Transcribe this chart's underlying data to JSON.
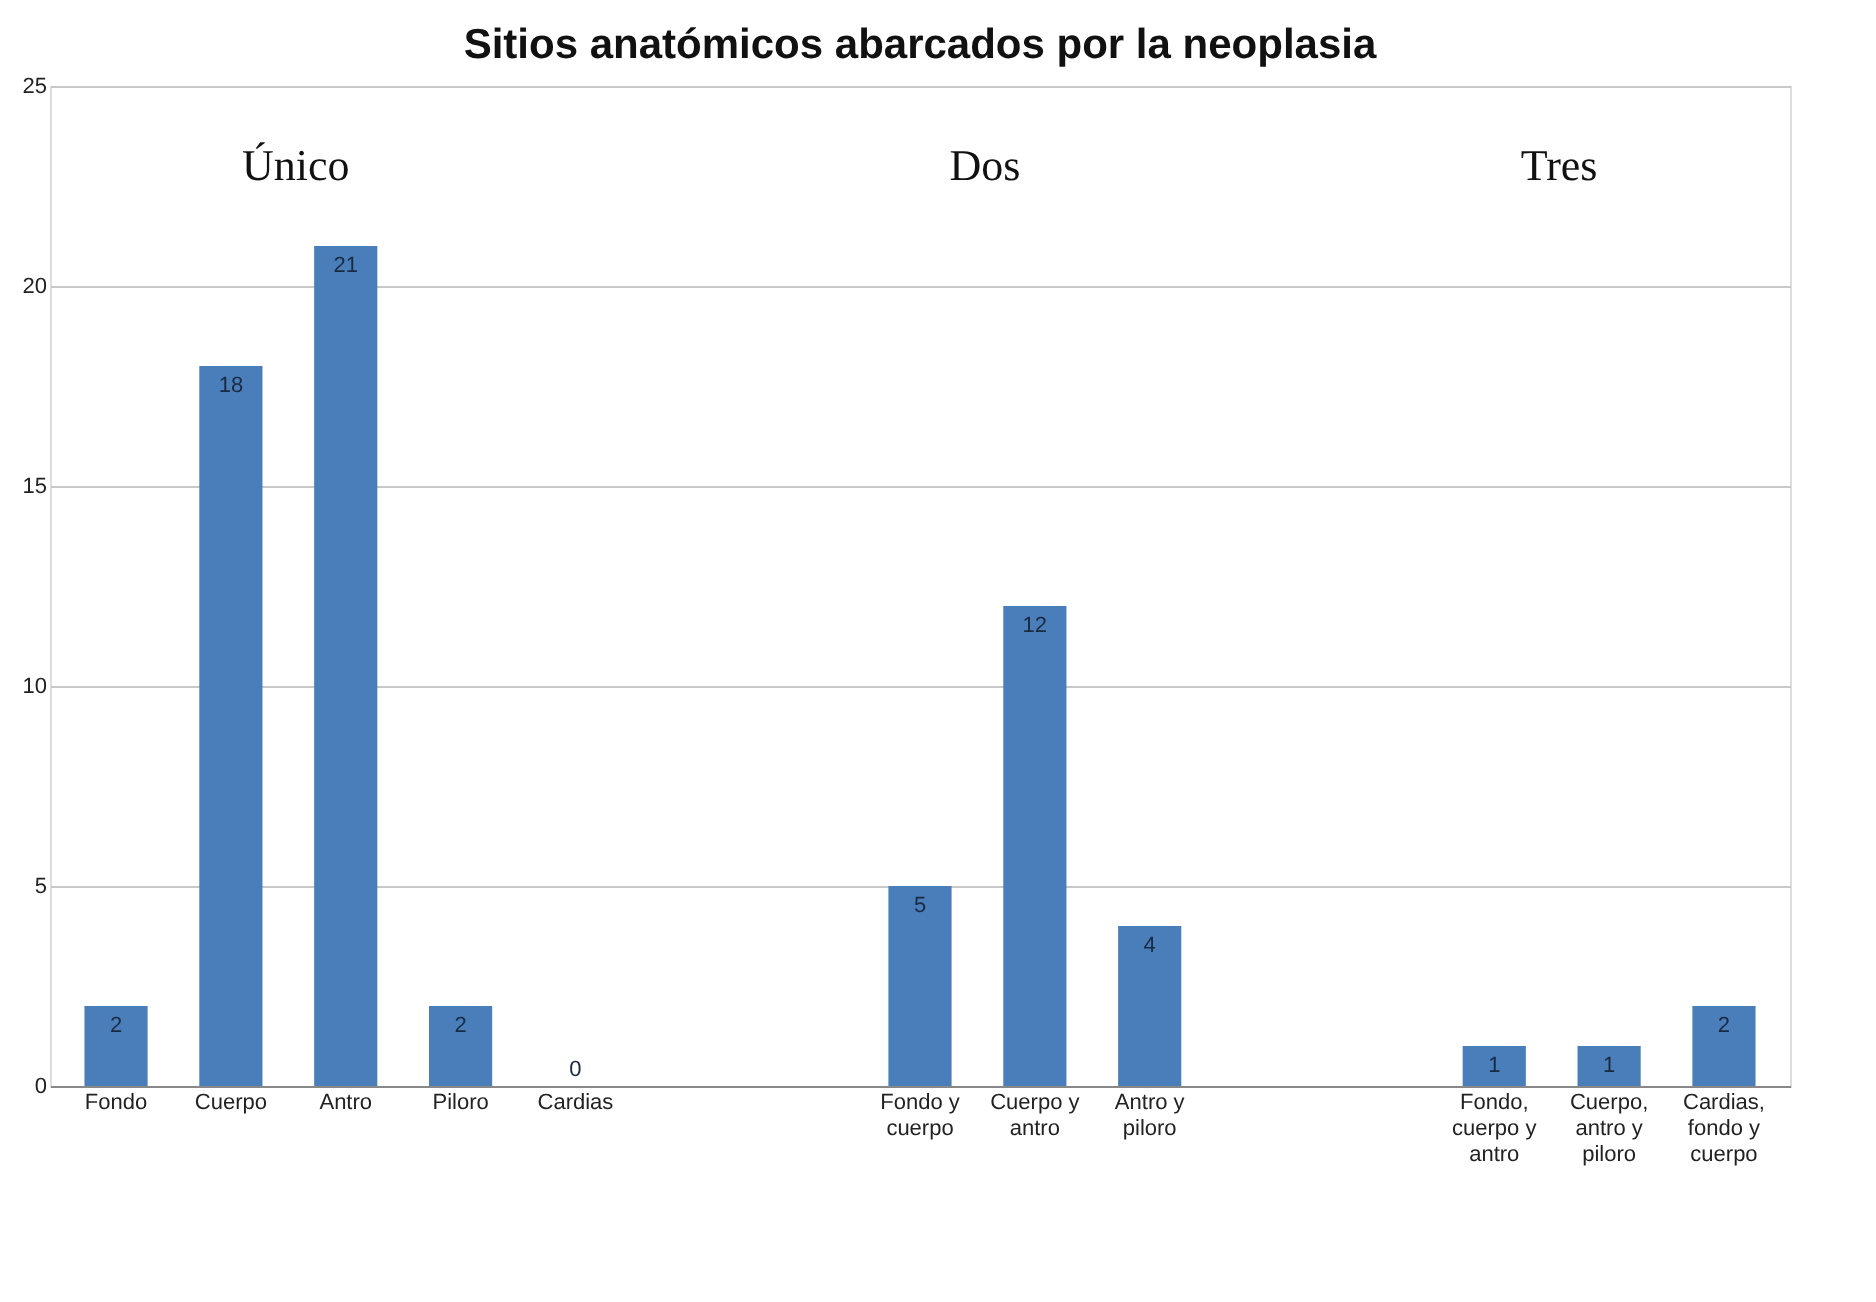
{
  "chart_data": {
    "type": "bar",
    "title": "Sitios anatómicos abarcados por la neoplasia",
    "categories": [
      "Fondo",
      "Cuerpo",
      "Antro",
      "Piloro",
      "Cardias",
      null,
      null,
      "Fondo y cuerpo",
      "Cuerpo y antro",
      "Antro y piloro",
      null,
      null,
      "Fondo, cuerpo y antro",
      "Cuerpo, antro y piloro",
      "Cardias, fondo y cuerpo"
    ],
    "values": [
      2,
      18,
      21,
      2,
      0,
      null,
      null,
      5,
      12,
      4,
      null,
      null,
      1,
      1,
      2
    ],
    "color": "#4a7ebb",
    "ylim": [
      0,
      25
    ],
    "yticks": [
      0,
      5,
      10,
      15,
      20,
      25
    ],
    "grid": "y",
    "data_labels": true,
    "annotations": [
      "Único",
      "Dos",
      "Tres"
    ]
  }
}
